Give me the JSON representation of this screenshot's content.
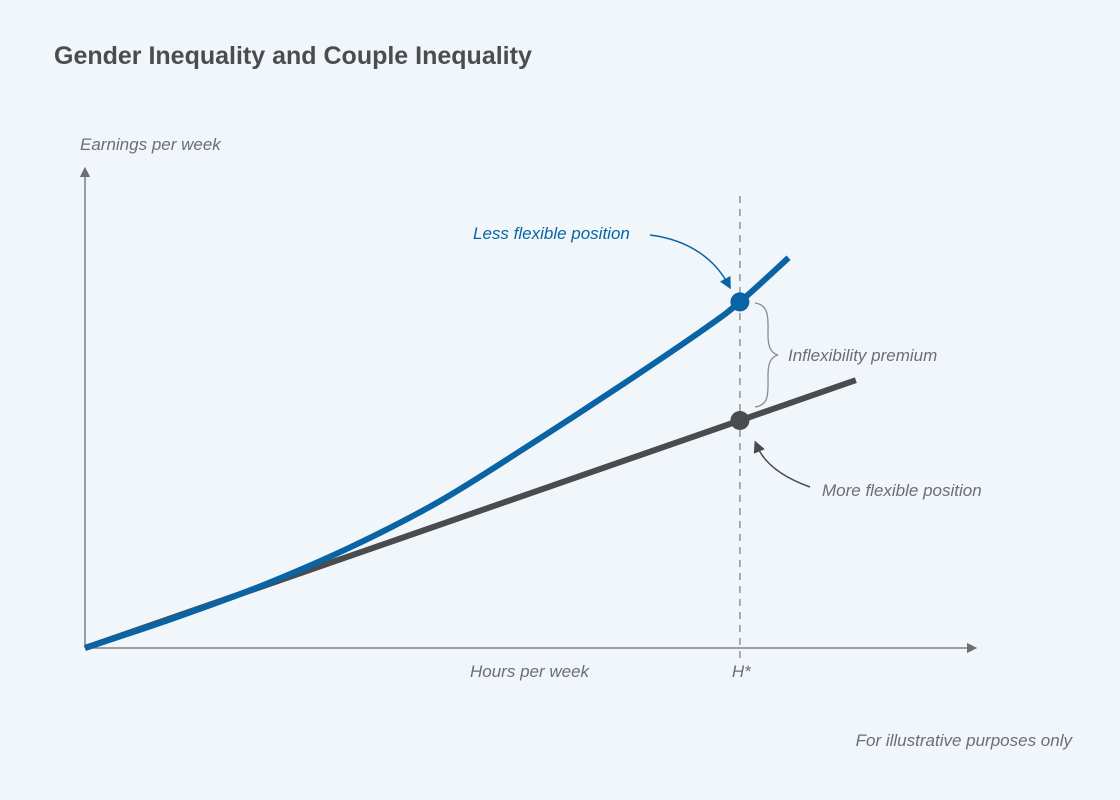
{
  "chart_data": {
    "type": "line",
    "title": "Gender Inequality and Couple Inequality",
    "xlabel": "Hours per week",
    "ylabel": "Earnings per week",
    "xlim": [
      0,
      100
    ],
    "ylim": [
      0,
      100
    ],
    "grid": false,
    "x_marker": {
      "label": "H*",
      "x": 74
    },
    "series": [
      {
        "name": "Less flexible position",
        "color": "#0a64a4",
        "x": [
          0,
          10,
          20,
          30,
          40,
          50,
          60,
          70,
          74,
          79.5
        ],
        "y": [
          0,
          6.2,
          13,
          21,
          30.5,
          42,
          54,
          66.5,
          72.1,
          81.3
        ]
      },
      {
        "name": "More flexible position",
        "color": "#4a4b4f",
        "x": [
          0,
          74,
          87.1
        ],
        "y": [
          0,
          47.4,
          55.8
        ]
      }
    ],
    "annotations": {
      "less_flexible": "Less flexible position",
      "more_flexible": "More flexible position",
      "premium": "Inflexibility premium"
    },
    "footnote": "For illustrative purposes only"
  }
}
